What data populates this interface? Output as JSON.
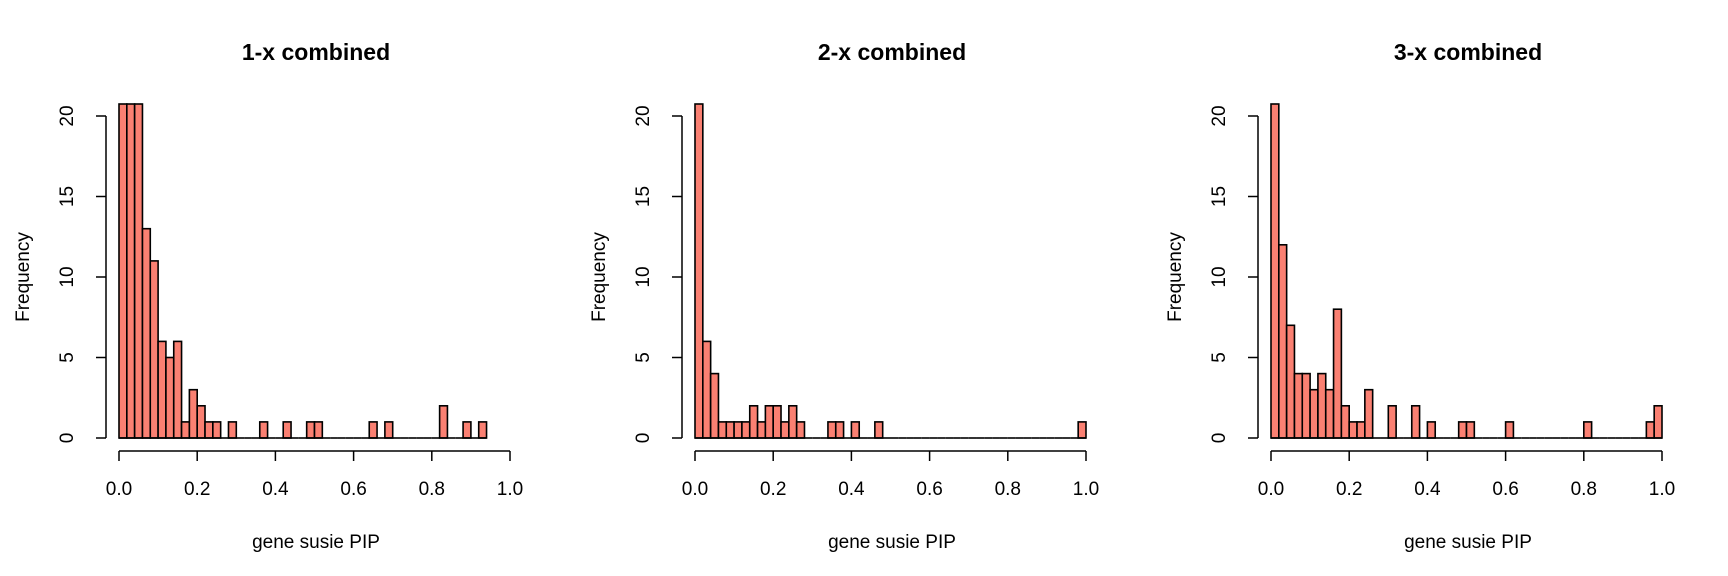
{
  "chart_data": [
    {
      "type": "bar",
      "title": "1-x combined",
      "xlabel": "gene susie PIP",
      "ylabel": "Frequency",
      "bin_width": 0.02,
      "bin_starts": [
        0.0,
        0.02,
        0.04,
        0.06,
        0.08,
        0.1,
        0.12,
        0.14,
        0.16,
        0.18,
        0.2,
        0.22,
        0.24,
        0.26,
        0.28,
        0.3,
        0.32,
        0.34,
        0.36,
        0.38,
        0.4,
        0.42,
        0.44,
        0.46,
        0.48,
        0.5,
        0.52,
        0.54,
        0.56,
        0.58,
        0.6,
        0.62,
        0.64,
        0.66,
        0.68,
        0.7,
        0.72,
        0.74,
        0.76,
        0.78,
        0.8,
        0.82,
        0.84,
        0.86,
        0.88,
        0.9,
        0.92
      ],
      "values": [
        21,
        21,
        21,
        13,
        11,
        6,
        5,
        6,
        1,
        3,
        2,
        1,
        1,
        0,
        1,
        0,
        0,
        0,
        1,
        0,
        0,
        1,
        0,
        0,
        1,
        1,
        0,
        0,
        0,
        0,
        0,
        0,
        1,
        0,
        1,
        0,
        0,
        0,
        0,
        0,
        0,
        2,
        0,
        0,
        1,
        0,
        1
      ],
      "xlim": [
        0,
        1
      ],
      "ylim": [
        0,
        20
      ],
      "xticks": [
        "0.0",
        "0.2",
        "0.4",
        "0.6",
        "0.8",
        "1.0"
      ],
      "yticks": [
        "0",
        "5",
        "10",
        "15",
        "20"
      ],
      "bar_color": "#fa8072",
      "grid": false
    },
    {
      "type": "bar",
      "title": "2-x combined",
      "xlabel": "gene susie PIP",
      "ylabel": "Frequency",
      "bin_width": 0.02,
      "bin_starts": [
        0.0,
        0.02,
        0.04,
        0.06,
        0.08,
        0.1,
        0.12,
        0.14,
        0.16,
        0.18,
        0.2,
        0.22,
        0.24,
        0.26,
        0.28,
        0.3,
        0.32,
        0.34,
        0.36,
        0.38,
        0.4,
        0.42,
        0.44,
        0.46,
        0.48,
        0.5,
        0.52,
        0.54,
        0.56,
        0.58,
        0.6,
        0.62,
        0.64,
        0.66,
        0.68,
        0.7,
        0.72,
        0.74,
        0.76,
        0.78,
        0.8,
        0.82,
        0.84,
        0.86,
        0.88,
        0.9,
        0.92,
        0.94,
        0.96,
        0.98
      ],
      "values": [
        21,
        6,
        4,
        1,
        1,
        1,
        1,
        2,
        1,
        2,
        2,
        1,
        2,
        1,
        0,
        0,
        0,
        1,
        1,
        0,
        1,
        0,
        0,
        1,
        0,
        0,
        0,
        0,
        0,
        0,
        0,
        0,
        0,
        0,
        0,
        0,
        0,
        0,
        0,
        0,
        0,
        0,
        0,
        0,
        0,
        0,
        0,
        0,
        0,
        1
      ],
      "xlim": [
        0,
        1
      ],
      "ylim": [
        0,
        20
      ],
      "xticks": [
        "0.0",
        "0.2",
        "0.4",
        "0.6",
        "0.8",
        "1.0"
      ],
      "yticks": [
        "0",
        "5",
        "10",
        "15",
        "20"
      ],
      "bar_color": "#fa8072",
      "grid": false
    },
    {
      "type": "bar",
      "title": "3-x combined",
      "xlabel": "gene susie PIP",
      "ylabel": "Frequency",
      "bin_width": 0.02,
      "bin_starts": [
        0.0,
        0.02,
        0.04,
        0.06,
        0.08,
        0.1,
        0.12,
        0.14,
        0.16,
        0.18,
        0.2,
        0.22,
        0.24,
        0.26,
        0.28,
        0.3,
        0.32,
        0.34,
        0.36,
        0.38,
        0.4,
        0.42,
        0.44,
        0.46,
        0.48,
        0.5,
        0.52,
        0.54,
        0.56,
        0.58,
        0.6,
        0.62,
        0.64,
        0.66,
        0.68,
        0.7,
        0.72,
        0.74,
        0.76,
        0.78,
        0.8,
        0.82,
        0.84,
        0.86,
        0.88,
        0.9,
        0.92,
        0.94,
        0.96,
        0.98
      ],
      "values": [
        21,
        12,
        7,
        4,
        4,
        3,
        4,
        3,
        8,
        2,
        1,
        1,
        3,
        0,
        0,
        2,
        0,
        0,
        2,
        0,
        1,
        0,
        0,
        0,
        1,
        1,
        0,
        0,
        0,
        0,
        1,
        0,
        0,
        0,
        0,
        0,
        0,
        0,
        0,
        0,
        1,
        0,
        0,
        0,
        0,
        0,
        0,
        0,
        1,
        2
      ],
      "xlim": [
        0,
        1
      ],
      "ylim": [
        0,
        20
      ],
      "xticks": [
        "0.0",
        "0.2",
        "0.4",
        "0.6",
        "0.8",
        "1.0"
      ],
      "yticks": [
        "0",
        "5",
        "10",
        "15",
        "20"
      ],
      "bar_color": "#fa8072",
      "grid": false
    }
  ]
}
